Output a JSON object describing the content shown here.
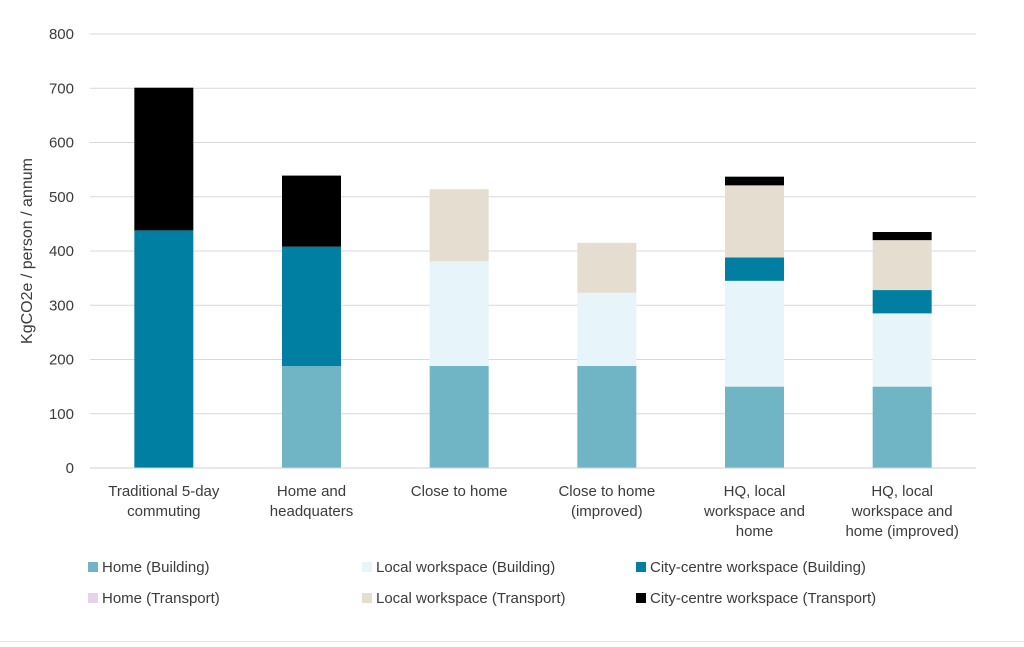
{
  "chart_data": {
    "type": "bar",
    "stacked": true,
    "title": "",
    "xlabel": "",
    "ylabel": "KgCO2e / person / annum",
    "ylim": [
      0,
      800
    ],
    "yticks": [
      0,
      100,
      200,
      300,
      400,
      500,
      600,
      700,
      800
    ],
    "grid": true,
    "legend_position": "bottom",
    "categories": [
      [
        "Traditional 5-day",
        "commuting"
      ],
      [
        "Home and",
        "headquaters"
      ],
      [
        "Close to home"
      ],
      [
        "Close to home",
        "(improved)"
      ],
      [
        "HQ, local",
        "workspace and",
        "home"
      ],
      [
        "HQ, local",
        "workspace and",
        "home (improved)"
      ]
    ],
    "series": [
      {
        "name": "Home (Building)",
        "color": "#6fb5c5",
        "values": [
          0,
          188,
          188,
          188,
          150,
          150
        ]
      },
      {
        "name": "Local workspace (Building)",
        "color": "#e7f4f9",
        "values": [
          0,
          0,
          193,
          135,
          195,
          135
        ]
      },
      {
        "name": "City-centre workspace (Building)",
        "color": "#007fa3",
        "values": [
          438,
          220,
          0,
          0,
          43,
          43
        ]
      },
      {
        "name": "Home (Transport)",
        "color": "#e6d3ea",
        "values": [
          0,
          0,
          0,
          0,
          0,
          0
        ]
      },
      {
        "name": "Local workspace (Transport)",
        "color": "#e6ddd1",
        "values": [
          0,
          0,
          133,
          92,
          133,
          92
        ]
      },
      {
        "name": "City-centre workspace (Transport)",
        "color": "#000000",
        "values": [
          263,
          131,
          0,
          0,
          16,
          15
        ]
      }
    ]
  }
}
